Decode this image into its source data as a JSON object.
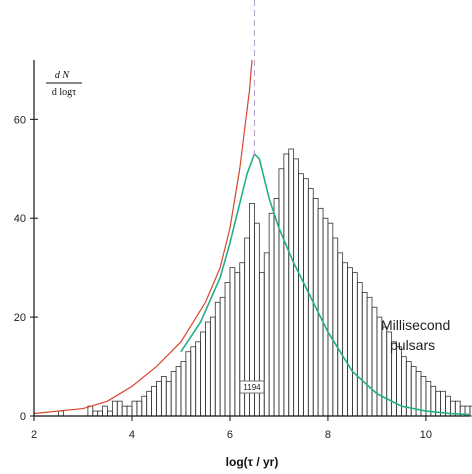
{
  "chart_data": {
    "type": "bar",
    "title": "",
    "xlabel": "log(τ / yr)",
    "ylabel_numerator": "d N",
    "ylabel_denominator": "d logτ",
    "xlim": [
      2,
      10.9
    ],
    "ylim": [
      0,
      72
    ],
    "xticks": [
      "2",
      "4",
      "6",
      "8",
      "10"
    ],
    "yticks": [
      "0",
      "20",
      "40",
      "60"
    ],
    "bin_width": 0.1,
    "bin_edges_start": 2.0,
    "histogram_values": [
      0,
      0,
      0,
      0,
      0,
      1,
      0,
      0,
      0,
      0,
      0,
      2,
      1,
      1,
      2,
      1,
      3,
      3,
      2,
      2,
      3,
      3,
      4,
      5,
      6,
      7,
      8,
      7,
      9,
      10,
      11,
      13,
      14,
      15,
      17,
      19,
      20,
      23,
      24,
      27,
      30,
      29,
      31,
      36,
      43,
      39,
      29,
      33,
      41,
      44,
      50,
      53,
      54,
      52,
      49,
      48,
      46,
      44,
      42,
      40,
      39,
      36,
      33,
      31,
      30,
      29,
      27,
      25,
      24,
      22,
      20,
      18,
      17,
      15,
      14,
      12,
      11,
      10,
      9,
      8,
      7,
      6,
      5,
      5,
      4,
      3,
      3,
      2,
      2,
      2,
      1,
      1,
      1,
      1,
      0,
      1,
      2,
      1,
      2,
      1,
      1,
      1,
      1,
      1,
      0,
      2,
      1,
      1,
      2,
      1
    ],
    "series": [
      {
        "name": "",
        "color": "#d8452e",
        "x": [
          2.0,
          3.0,
          3.5,
          4.0,
          4.5,
          5.0,
          5.5,
          5.8,
          6.0,
          6.2,
          6.3,
          6.4,
          6.45
        ],
        "y": [
          0.5,
          1.5,
          3,
          6,
          10,
          15,
          23,
          30,
          38,
          50,
          58,
          66,
          72
        ]
      },
      {
        "name": "",
        "color": "#22b08a",
        "x": [
          5.0,
          5.4,
          5.8,
          6.0,
          6.2,
          6.35,
          6.5,
          6.6,
          6.8,
          7.0,
          7.3,
          7.6,
          8.0,
          8.5,
          9.0,
          9.5,
          10.0,
          10.5,
          10.9
        ],
        "y": [
          13,
          19,
          28,
          35,
          43,
          49,
          53,
          52,
          44,
          38,
          31,
          25,
          17,
          9,
          4.5,
          2,
          1,
          0.5,
          0.3
        ]
      }
    ],
    "dashed_line_x": 6.5,
    "annotations": [
      "Millisecond",
      "pulsars",
      "1194"
    ]
  }
}
